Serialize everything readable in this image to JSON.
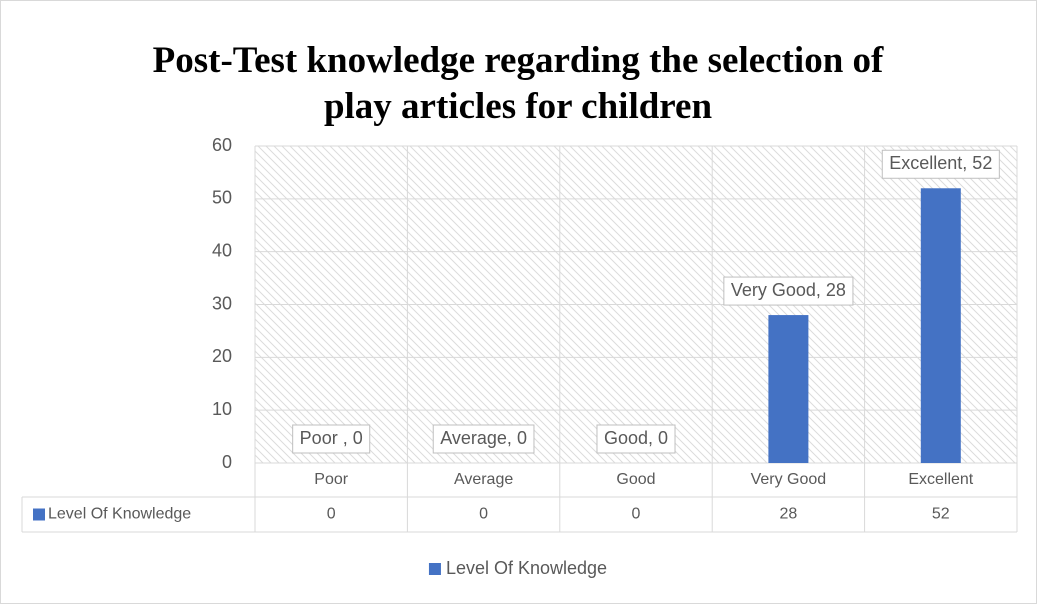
{
  "chart_data": {
    "type": "bar",
    "title": "Post-Test knowledge regarding the selection of play articles for children",
    "categories": [
      "Poor",
      "Average",
      "Good",
      "Very Good",
      "Excellent"
    ],
    "series": [
      {
        "name": "Level Of Knowledge",
        "color": "#4472c4",
        "values": [
          0,
          0,
          0,
          28,
          52
        ],
        "value_labels": [
          "Poor , 0",
          "Average, 0",
          "Good, 0",
          "Very Good, 28",
          "Excellent, 52"
        ]
      }
    ],
    "ylim": [
      0,
      60
    ],
    "yticks": [
      0,
      10,
      20,
      30,
      40,
      50,
      60
    ],
    "grid": true,
    "data_table": true,
    "legend": "bottom"
  }
}
